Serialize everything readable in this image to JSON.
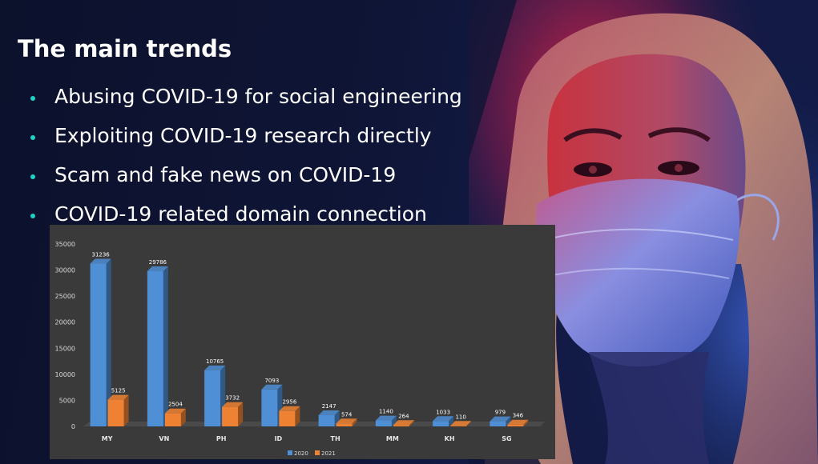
{
  "slide": {
    "title": "The main trends",
    "bullets": [
      "Abusing COVID-19 for social engineering",
      "Exploiting COVID-19 research directly",
      "Scam and fake news on COVID-19",
      "COVID-19 related domain connection"
    ],
    "bullet_color": "#21d1c5"
  },
  "chart_data": {
    "type": "bar",
    "categories": [
      "MY",
      "VN",
      "PH",
      "ID",
      "TH",
      "MM",
      "KH",
      "SG"
    ],
    "series": [
      {
        "name": "2020",
        "color": "#4f8fd6",
        "values": [
          31236,
          29786,
          10765,
          7093,
          2147,
          1140,
          1033,
          979
        ]
      },
      {
        "name": "2021",
        "color": "#ef8232",
        "values": [
          5125,
          2504,
          3732,
          2956,
          574,
          264,
          110,
          346
        ]
      }
    ],
    "ylim": [
      0,
      35000
    ],
    "yticks": [
      "0",
      "5000",
      "10000",
      "15000",
      "20000",
      "25000",
      "30000",
      "35000"
    ],
    "legend_position": "bottom",
    "grid": false
  }
}
